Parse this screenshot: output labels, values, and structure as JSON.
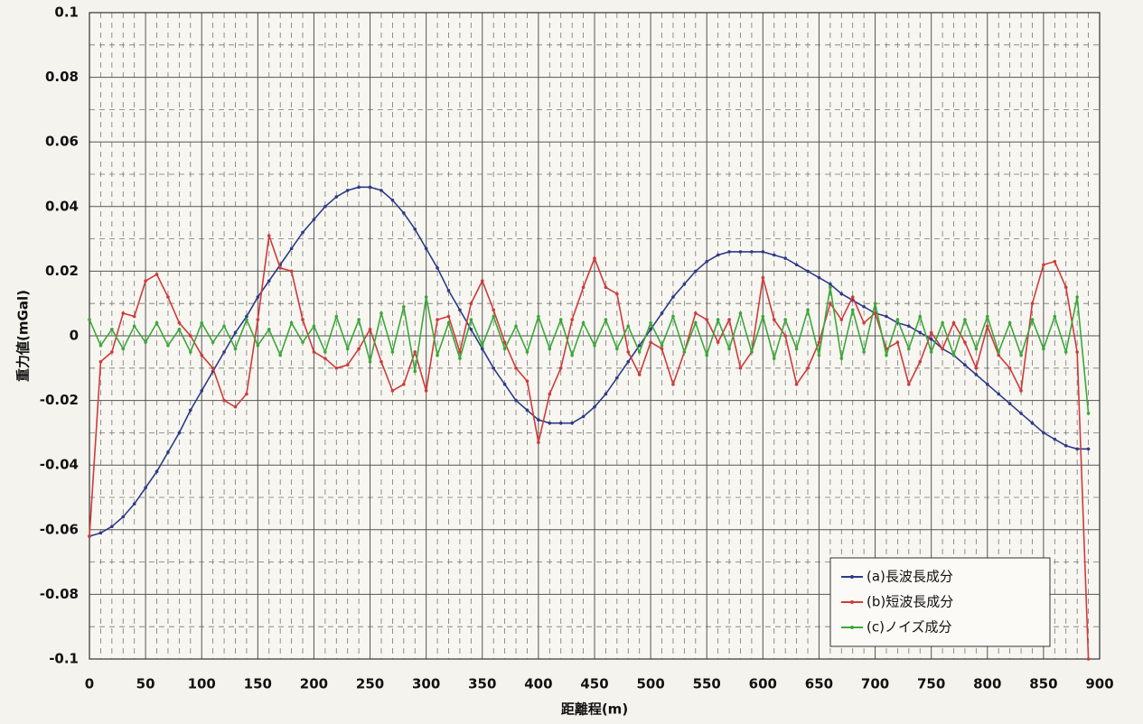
{
  "chart_data": {
    "type": "line",
    "ylabel": "重力値(mGal)",
    "xlabel": "距離程(m)",
    "x": [
      0,
      10,
      20,
      30,
      40,
      50,
      60,
      70,
      80,
      90,
      100,
      110,
      120,
      130,
      140,
      150,
      160,
      170,
      180,
      190,
      200,
      210,
      220,
      230,
      240,
      250,
      260,
      270,
      280,
      290,
      300,
      310,
      320,
      330,
      340,
      350,
      360,
      370,
      380,
      390,
      400,
      410,
      420,
      430,
      440,
      450,
      460,
      470,
      480,
      490,
      500,
      510,
      520,
      530,
      540,
      550,
      560,
      570,
      580,
      590,
      600,
      610,
      620,
      630,
      640,
      650,
      660,
      670,
      680,
      690,
      700,
      710,
      720,
      730,
      740,
      750,
      760,
      770,
      780,
      790,
      800,
      810,
      820,
      830,
      840,
      850,
      860,
      870,
      880,
      890
    ],
    "series": [
      {
        "name": "(a)長波長成分",
        "color": "#2e3a87",
        "values": [
          -0.062,
          -0.061,
          -0.059,
          -0.056,
          -0.052,
          -0.047,
          -0.042,
          -0.036,
          -0.03,
          -0.023,
          -0.017,
          -0.011,
          -0.005,
          0.001,
          0.006,
          0.012,
          0.017,
          0.022,
          0.027,
          0.032,
          0.036,
          0.04,
          0.043,
          0.045,
          0.046,
          0.046,
          0.045,
          0.042,
          0.038,
          0.033,
          0.027,
          0.021,
          0.014,
          0.008,
          0.002,
          -0.004,
          -0.01,
          -0.015,
          -0.02,
          -0.023,
          -0.026,
          -0.027,
          -0.027,
          -0.027,
          -0.025,
          -0.022,
          -0.018,
          -0.013,
          -0.008,
          -0.003,
          0.002,
          0.007,
          0.012,
          0.016,
          0.02,
          0.023,
          0.025,
          0.026,
          0.026,
          0.026,
          0.026,
          0.025,
          0.024,
          0.022,
          0.02,
          0.018,
          0.016,
          0.013,
          0.011,
          0.009,
          0.007,
          0.006,
          0.004,
          0.003,
          0.001,
          -0.001,
          -0.004,
          -0.006,
          -0.009,
          -0.012,
          -0.015,
          -0.018,
          -0.021,
          -0.024,
          -0.027,
          -0.03,
          -0.032,
          -0.034,
          -0.035,
          -0.035
        ]
      },
      {
        "name": "(b)短波長成分",
        "color": "#d03a3a",
        "values": [
          -0.062,
          -0.008,
          -0.005,
          0.007,
          0.006,
          0.017,
          0.019,
          0.012,
          0.004,
          0.0,
          -0.006,
          -0.01,
          -0.02,
          -0.022,
          -0.018,
          0.005,
          0.031,
          0.021,
          0.02,
          0.005,
          -0.005,
          -0.007,
          -0.01,
          -0.009,
          -0.004,
          0.002,
          -0.008,
          -0.017,
          -0.015,
          -0.005,
          -0.017,
          0.005,
          0.006,
          -0.005,
          0.01,
          0.017,
          0.008,
          -0.002,
          -0.01,
          -0.014,
          -0.033,
          -0.018,
          -0.01,
          0.005,
          0.015,
          0.024,
          0.015,
          0.013,
          -0.005,
          -0.012,
          -0.002,
          -0.004,
          -0.015,
          -0.005,
          0.007,
          0.005,
          -0.002,
          0.005,
          -0.01,
          -0.005,
          0.018,
          0.005,
          0.0,
          -0.015,
          -0.01,
          -0.002,
          0.01,
          0.005,
          0.012,
          0.004,
          0.007,
          -0.004,
          -0.002,
          -0.015,
          -0.008,
          0.001,
          -0.004,
          0.004,
          -0.002,
          -0.01,
          0.003,
          -0.006,
          -0.01,
          -0.017,
          0.01,
          0.022,
          0.023,
          0.015,
          -0.005,
          -0.1
        ]
      },
      {
        "name": "(c)ノイズ成分",
        "color": "#3aa83a",
        "values": [
          0.005,
          -0.003,
          0.002,
          -0.004,
          0.003,
          -0.002,
          0.004,
          -0.003,
          0.002,
          -0.005,
          0.004,
          -0.002,
          0.003,
          -0.004,
          0.005,
          -0.003,
          0.002,
          -0.006,
          0.004,
          -0.002,
          0.003,
          -0.005,
          0.006,
          -0.004,
          0.005,
          -0.008,
          0.007,
          -0.005,
          0.009,
          -0.011,
          0.012,
          -0.006,
          0.004,
          -0.007,
          0.005,
          -0.003,
          0.006,
          -0.004,
          0.003,
          -0.005,
          0.006,
          -0.004,
          0.005,
          -0.006,
          0.004,
          -0.003,
          0.005,
          -0.004,
          0.003,
          -0.005,
          0.004,
          -0.003,
          0.006,
          -0.005,
          0.004,
          -0.006,
          0.005,
          -0.004,
          0.007,
          -0.005,
          0.006,
          -0.007,
          0.005,
          -0.004,
          0.008,
          -0.006,
          0.015,
          -0.007,
          0.008,
          -0.005,
          0.01,
          -0.006,
          0.005,
          -0.004,
          0.006,
          -0.005,
          0.004,
          -0.006,
          0.005,
          -0.004,
          0.006,
          -0.005,
          0.004,
          -0.006,
          0.005,
          -0.004,
          0.006,
          -0.005,
          0.012,
          -0.024
        ]
      }
    ],
    "xlim": [
      0,
      900
    ],
    "xticks": [
      0,
      50,
      100,
      150,
      200,
      250,
      300,
      350,
      400,
      450,
      500,
      550,
      600,
      650,
      700,
      750,
      800,
      850,
      900
    ],
    "ylim": [
      -0.1,
      0.1
    ],
    "yticks": [
      -0.1,
      -0.08,
      -0.06,
      -0.04,
      -0.02,
      0,
      0.02,
      0.04,
      0.06,
      0.08,
      0.1
    ],
    "grid": true,
    "legend": "lower right"
  }
}
